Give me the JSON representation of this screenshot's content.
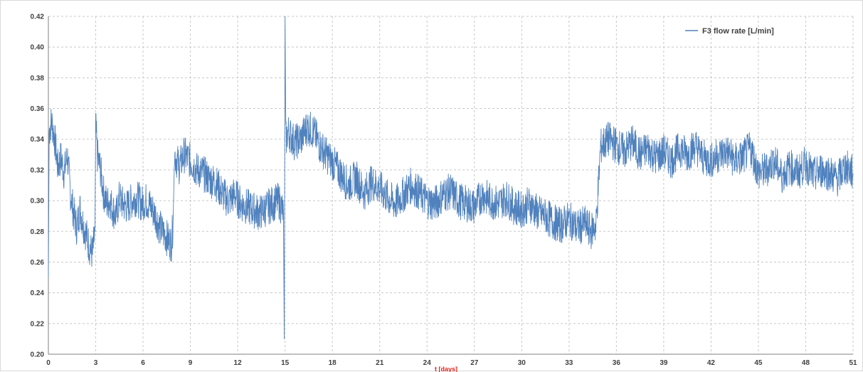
{
  "chart_data": {
    "type": "line",
    "title": "",
    "xlabel": "t [days]",
    "ylabel": "",
    "xlim": [
      0,
      51
    ],
    "ylim": [
      0.2,
      0.42
    ],
    "x_ticks": [
      0,
      3,
      6,
      9,
      12,
      15,
      18,
      21,
      24,
      27,
      30,
      33,
      36,
      39,
      42,
      45,
      48,
      51
    ],
    "x_tick_labels": [
      "0",
      "3",
      "6",
      "9",
      "12",
      "15",
      "18",
      "21",
      "24",
      "27",
      "30",
      "33",
      "36",
      "39",
      "42",
      "45",
      "48",
      "51"
    ],
    "y_ticks": [
      0.2,
      0.22,
      0.24,
      0.26,
      0.28,
      0.3,
      0.32,
      0.34,
      0.36,
      0.38,
      0.4,
      0.42
    ],
    "y_tick_labels": [
      "0.20",
      "0.22",
      "0.24",
      "0.26",
      "0.28",
      "0.30",
      "0.32",
      "0.34",
      "0.36",
      "0.38",
      "0.40",
      "0.42"
    ],
    "grid": true,
    "legend": "top-right",
    "series": [
      {
        "name": "F3 flow rate [L/min]",
        "color": "#4f81bd",
        "x": [
          0.0,
          0.05,
          0.2,
          0.4,
          0.6,
          0.8,
          1.0,
          1.2,
          1.4,
          1.6,
          1.8,
          2.0,
          2.2,
          2.4,
          2.6,
          2.8,
          2.95,
          3.0,
          3.1,
          3.3,
          3.5,
          3.7,
          3.9,
          4.1,
          4.3,
          4.5,
          4.7,
          5.0,
          5.3,
          5.6,
          5.9,
          6.2,
          6.5,
          6.8,
          7.0,
          7.2,
          7.4,
          7.6,
          7.8,
          7.9,
          8.0,
          8.3,
          8.6,
          9.0,
          9.4,
          9.8,
          10.2,
          10.6,
          11.0,
          11.4,
          11.8,
          12.2,
          12.6,
          13.0,
          13.4,
          13.8,
          14.2,
          14.6,
          14.9,
          14.95,
          15.0,
          15.05,
          15.2,
          15.6,
          16.0,
          16.4,
          16.8,
          17.2,
          17.6,
          18.0,
          18.5,
          19.0,
          19.5,
          20.0,
          20.5,
          21.0,
          21.5,
          22.0,
          22.5,
          23.0,
          23.5,
          24.0,
          24.5,
          25.0,
          25.5,
          26.0,
          26.5,
          27.0,
          27.5,
          28.0,
          28.5,
          29.0,
          29.5,
          30.0,
          30.5,
          31.0,
          31.5,
          32.0,
          32.5,
          33.0,
          33.5,
          34.0,
          34.4,
          34.6,
          34.7,
          35.0,
          35.5,
          36.0,
          36.5,
          37.0,
          37.5,
          38.0,
          38.5,
          39.0,
          39.5,
          40.0,
          40.5,
          41.0,
          41.5,
          42.0,
          42.5,
          43.0,
          43.5,
          44.0,
          44.5,
          45.0,
          45.5,
          46.0,
          46.5,
          47.0,
          47.5,
          48.0,
          48.5,
          49.0,
          49.5,
          50.0,
          50.5,
          51.0
        ],
        "values": [
          0.25,
          0.345,
          0.352,
          0.34,
          0.322,
          0.328,
          0.318,
          0.33,
          0.305,
          0.292,
          0.282,
          0.295,
          0.285,
          0.278,
          0.27,
          0.265,
          0.28,
          0.35,
          0.33,
          0.32,
          0.305,
          0.298,
          0.3,
          0.294,
          0.29,
          0.302,
          0.298,
          0.296,
          0.3,
          0.302,
          0.298,
          0.3,
          0.296,
          0.29,
          0.284,
          0.28,
          0.278,
          0.274,
          0.272,
          0.285,
          0.33,
          0.322,
          0.33,
          0.326,
          0.32,
          0.318,
          0.314,
          0.312,
          0.305,
          0.3,
          0.304,
          0.298,
          0.296,
          0.294,
          0.292,
          0.295,
          0.298,
          0.3,
          0.292,
          0.21,
          0.42,
          0.34,
          0.345,
          0.338,
          0.34,
          0.348,
          0.345,
          0.336,
          0.33,
          0.325,
          0.318,
          0.31,
          0.315,
          0.305,
          0.312,
          0.308,
          0.302,
          0.298,
          0.304,
          0.31,
          0.305,
          0.3,
          0.298,
          0.304,
          0.306,
          0.3,
          0.298,
          0.296,
          0.304,
          0.3,
          0.298,
          0.302,
          0.296,
          0.294,
          0.298,
          0.292,
          0.29,
          0.286,
          0.284,
          0.288,
          0.282,
          0.285,
          0.28,
          0.284,
          0.282,
          0.335,
          0.34,
          0.336,
          0.332,
          0.338,
          0.33,
          0.334,
          0.328,
          0.332,
          0.326,
          0.334,
          0.33,
          0.336,
          0.328,
          0.326,
          0.33,
          0.332,
          0.326,
          0.328,
          0.334,
          0.318,
          0.32,
          0.326,
          0.316,
          0.322,
          0.318,
          0.324,
          0.316,
          0.32,
          0.318,
          0.314,
          0.322,
          0.318
        ]
      }
    ]
  }
}
